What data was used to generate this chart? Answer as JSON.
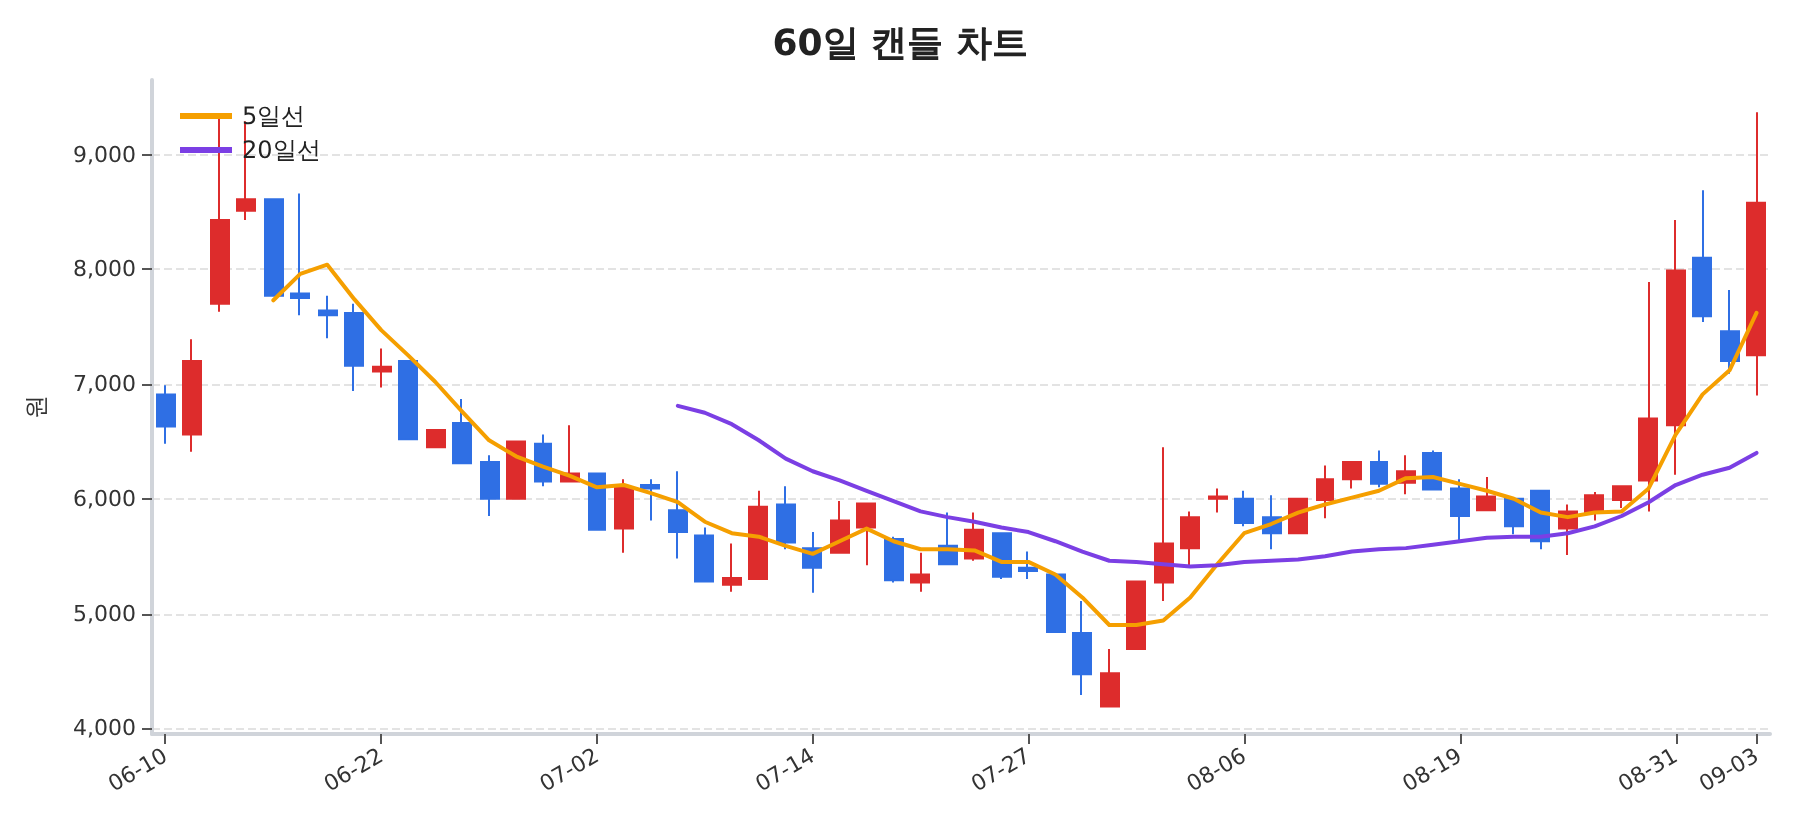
{
  "chart_data": {
    "type": "candlestick",
    "title": "60일 캔들 차트",
    "ylabel": "원",
    "categories": [
      "06-10",
      null,
      null,
      null,
      null,
      null,
      null,
      null,
      "06-22",
      null,
      null,
      null,
      null,
      null,
      null,
      null,
      "07-02",
      null,
      null,
      null,
      null,
      null,
      null,
      null,
      "07-14",
      null,
      null,
      null,
      null,
      null,
      null,
      null,
      "07-27",
      null,
      null,
      null,
      null,
      null,
      null,
      null,
      "08-06",
      null,
      null,
      null,
      null,
      null,
      null,
      null,
      "08-19",
      null,
      null,
      null,
      null,
      null,
      null,
      null,
      "08-31",
      null,
      null,
      "09-03"
    ],
    "ohlc": [
      [
        6910,
        6990,
        6480,
        6630
      ],
      [
        6560,
        7390,
        6410,
        7200
      ],
      [
        7700,
        9310,
        7630,
        8430
      ],
      [
        8510,
        9290,
        8430,
        8610
      ],
      [
        8610,
        8610,
        7770,
        7770
      ],
      [
        7790,
        8660,
        7600,
        7750
      ],
      [
        7640,
        7770,
        7400,
        7600
      ],
      [
        7620,
        7700,
        6940,
        7160
      ],
      [
        7110,
        7310,
        6970,
        7150
      ],
      [
        7200,
        7200,
        6520,
        6520
      ],
      [
        6450,
        6600,
        6450,
        6600
      ],
      [
        6660,
        6870,
        6310,
        6310
      ],
      [
        6320,
        6380,
        5850,
        6000
      ],
      [
        6000,
        6500,
        6000,
        6500
      ],
      [
        6480,
        6560,
        6110,
        6150
      ],
      [
        6150,
        6640,
        6150,
        6220
      ],
      [
        6220,
        6220,
        5730,
        5730
      ],
      [
        5740,
        6170,
        5530,
        6100
      ],
      [
        6120,
        6170,
        5810,
        6090
      ],
      [
        5900,
        6240,
        5480,
        5710
      ],
      [
        5680,
        5750,
        5280,
        5280
      ],
      [
        5250,
        5610,
        5190,
        5310
      ],
      [
        5300,
        6070,
        5300,
        5930
      ],
      [
        5950,
        6110,
        5560,
        5620
      ],
      [
        5570,
        5710,
        5180,
        5400
      ],
      [
        5530,
        5980,
        5530,
        5810
      ],
      [
        5750,
        5960,
        5420,
        5960
      ],
      [
        5650,
        5670,
        5270,
        5290
      ],
      [
        5270,
        5530,
        5190,
        5340
      ],
      [
        5590,
        5880,
        5430,
        5430
      ],
      [
        5480,
        5880,
        5460,
        5730
      ],
      [
        5700,
        5700,
        5300,
        5320
      ],
      [
        5400,
        5540,
        5300,
        5370
      ],
      [
        5340,
        5340,
        4840,
        4840
      ],
      [
        4830,
        5110,
        4290,
        4470
      ],
      [
        4190,
        4690,
        4190,
        4480
      ],
      [
        4690,
        5280,
        4690,
        5280
      ],
      [
        5270,
        6450,
        5110,
        5610
      ],
      [
        5570,
        5890,
        5420,
        5840
      ],
      [
        6000,
        6090,
        5880,
        6020
      ],
      [
        6000,
        6070,
        5760,
        5790
      ],
      [
        5840,
        6030,
        5560,
        5700
      ],
      [
        5700,
        6000,
        5700,
        6000
      ],
      [
        5990,
        6290,
        5830,
        6170
      ],
      [
        6170,
        6320,
        6090,
        6320
      ],
      [
        6320,
        6420,
        6100,
        6130
      ],
      [
        6140,
        6380,
        6040,
        6240
      ],
      [
        6400,
        6420,
        6080,
        6080
      ],
      [
        6090,
        6170,
        5640,
        5850
      ],
      [
        5900,
        6190,
        5900,
        6020
      ],
      [
        6000,
        6000,
        5690,
        5760
      ],
      [
        6070,
        6070,
        5560,
        5630
      ],
      [
        5740,
        5950,
        5510,
        5890
      ],
      [
        5880,
        6060,
        5810,
        6030
      ],
      [
        5990,
        6110,
        5920,
        6110
      ],
      [
        6160,
        7890,
        5890,
        6700
      ],
      [
        6640,
        8430,
        6210,
        7990
      ],
      [
        8100,
        8690,
        7540,
        7590
      ],
      [
        7460,
        7820,
        7090,
        7200
      ],
      [
        7250,
        9370,
        6900,
        8580
      ]
    ],
    "colors": [
      "#2f6fe4",
      "#dd2c2c",
      "#dd2c2c",
      "#dd2c2c",
      "#2f6fe4",
      "#2f6fe4",
      "#2f6fe4",
      "#2f6fe4",
      "#dd2c2c",
      "#2f6fe4",
      "#dd2c2c",
      "#2f6fe4",
      "#2f6fe4",
      "#dd2c2c",
      "#2f6fe4",
      "#dd2c2c",
      "#2f6fe4",
      "#dd2c2c",
      "#2f6fe4",
      "#2f6fe4",
      "#2f6fe4",
      "#dd2c2c",
      "#dd2c2c",
      "#2f6fe4",
      "#2f6fe4",
      "#dd2c2c",
      "#dd2c2c",
      "#2f6fe4",
      "#dd2c2c",
      "#2f6fe4",
      "#dd2c2c",
      "#2f6fe4",
      "#2f6fe4",
      "#2f6fe4",
      "#2f6fe4",
      "#dd2c2c",
      "#dd2c2c",
      "#dd2c2c",
      "#dd2c2c",
      "#dd2c2c",
      "#2f6fe4",
      "#2f6fe4",
      "#dd2c2c",
      "#dd2c2c",
      "#dd2c2c",
      "#2f6fe4",
      "#dd2c2c",
      "#2f6fe4",
      "#2f6fe4",
      "#dd2c2c",
      "#2f6fe4",
      "#2f6fe4",
      "#dd2c2c",
      "#dd2c2c",
      "#dd2c2c",
      "#dd2c2c",
      "#dd2c2c",
      "#2f6fe4",
      "#2f6fe4",
      "#dd2c2c"
    ],
    "series": [
      {
        "name": "5일선",
        "type": "line",
        "color": "#f59f00",
        "values": [
          null,
          null,
          null,
          null,
          7730,
          7960,
          8040,
          7740,
          7470,
          7250,
          7020,
          6760,
          6510,
          6370,
          6280,
          6200,
          6100,
          6120,
          6050,
          5970,
          5800,
          5700,
          5670,
          5590,
          5520,
          5630,
          5740,
          5630,
          5560,
          5560,
          5550,
          5450,
          5450,
          5340,
          5140,
          4900,
          4900,
          4940,
          5140,
          5430,
          5700,
          5780,
          5880,
          5950,
          6010,
          6070,
          6180,
          6190,
          6130,
          6070,
          6000,
          5880,
          5840,
          5880,
          5890,
          6090,
          6560,
          6910,
          7120,
          7620
        ]
      },
      {
        "name": "20일선",
        "type": "line",
        "color": "#7b3fe4",
        "values": [
          null,
          null,
          null,
          null,
          null,
          null,
          null,
          null,
          null,
          null,
          null,
          null,
          null,
          null,
          null,
          null,
          null,
          null,
          null,
          6810,
          6750,
          6650,
          6510,
          6350,
          6240,
          6160,
          6070,
          5980,
          5890,
          5840,
          5800,
          5750,
          5710,
          5630,
          5540,
          5460,
          5450,
          5430,
          5410,
          5420,
          5450,
          5460,
          5470,
          5500,
          5540,
          5560,
          5570,
          5600,
          5630,
          5660,
          5670,
          5670,
          5700,
          5760,
          5850,
          5970,
          6120,
          6210,
          6270,
          6400
        ]
      }
    ],
    "ylim": [
      3950,
      9650
    ],
    "yticks": [
      {
        "value": 4000,
        "label": "4,000"
      },
      {
        "value": 5000,
        "label": "5,000"
      },
      {
        "value": 6000,
        "label": "6,000"
      },
      {
        "value": 7000,
        "label": "7,000"
      },
      {
        "value": 8000,
        "label": "8,000"
      },
      {
        "value": 9000,
        "label": "9,000"
      }
    ],
    "grid": "y",
    "legend": "top left",
    "marker": "none",
    "line_style": "solid"
  }
}
